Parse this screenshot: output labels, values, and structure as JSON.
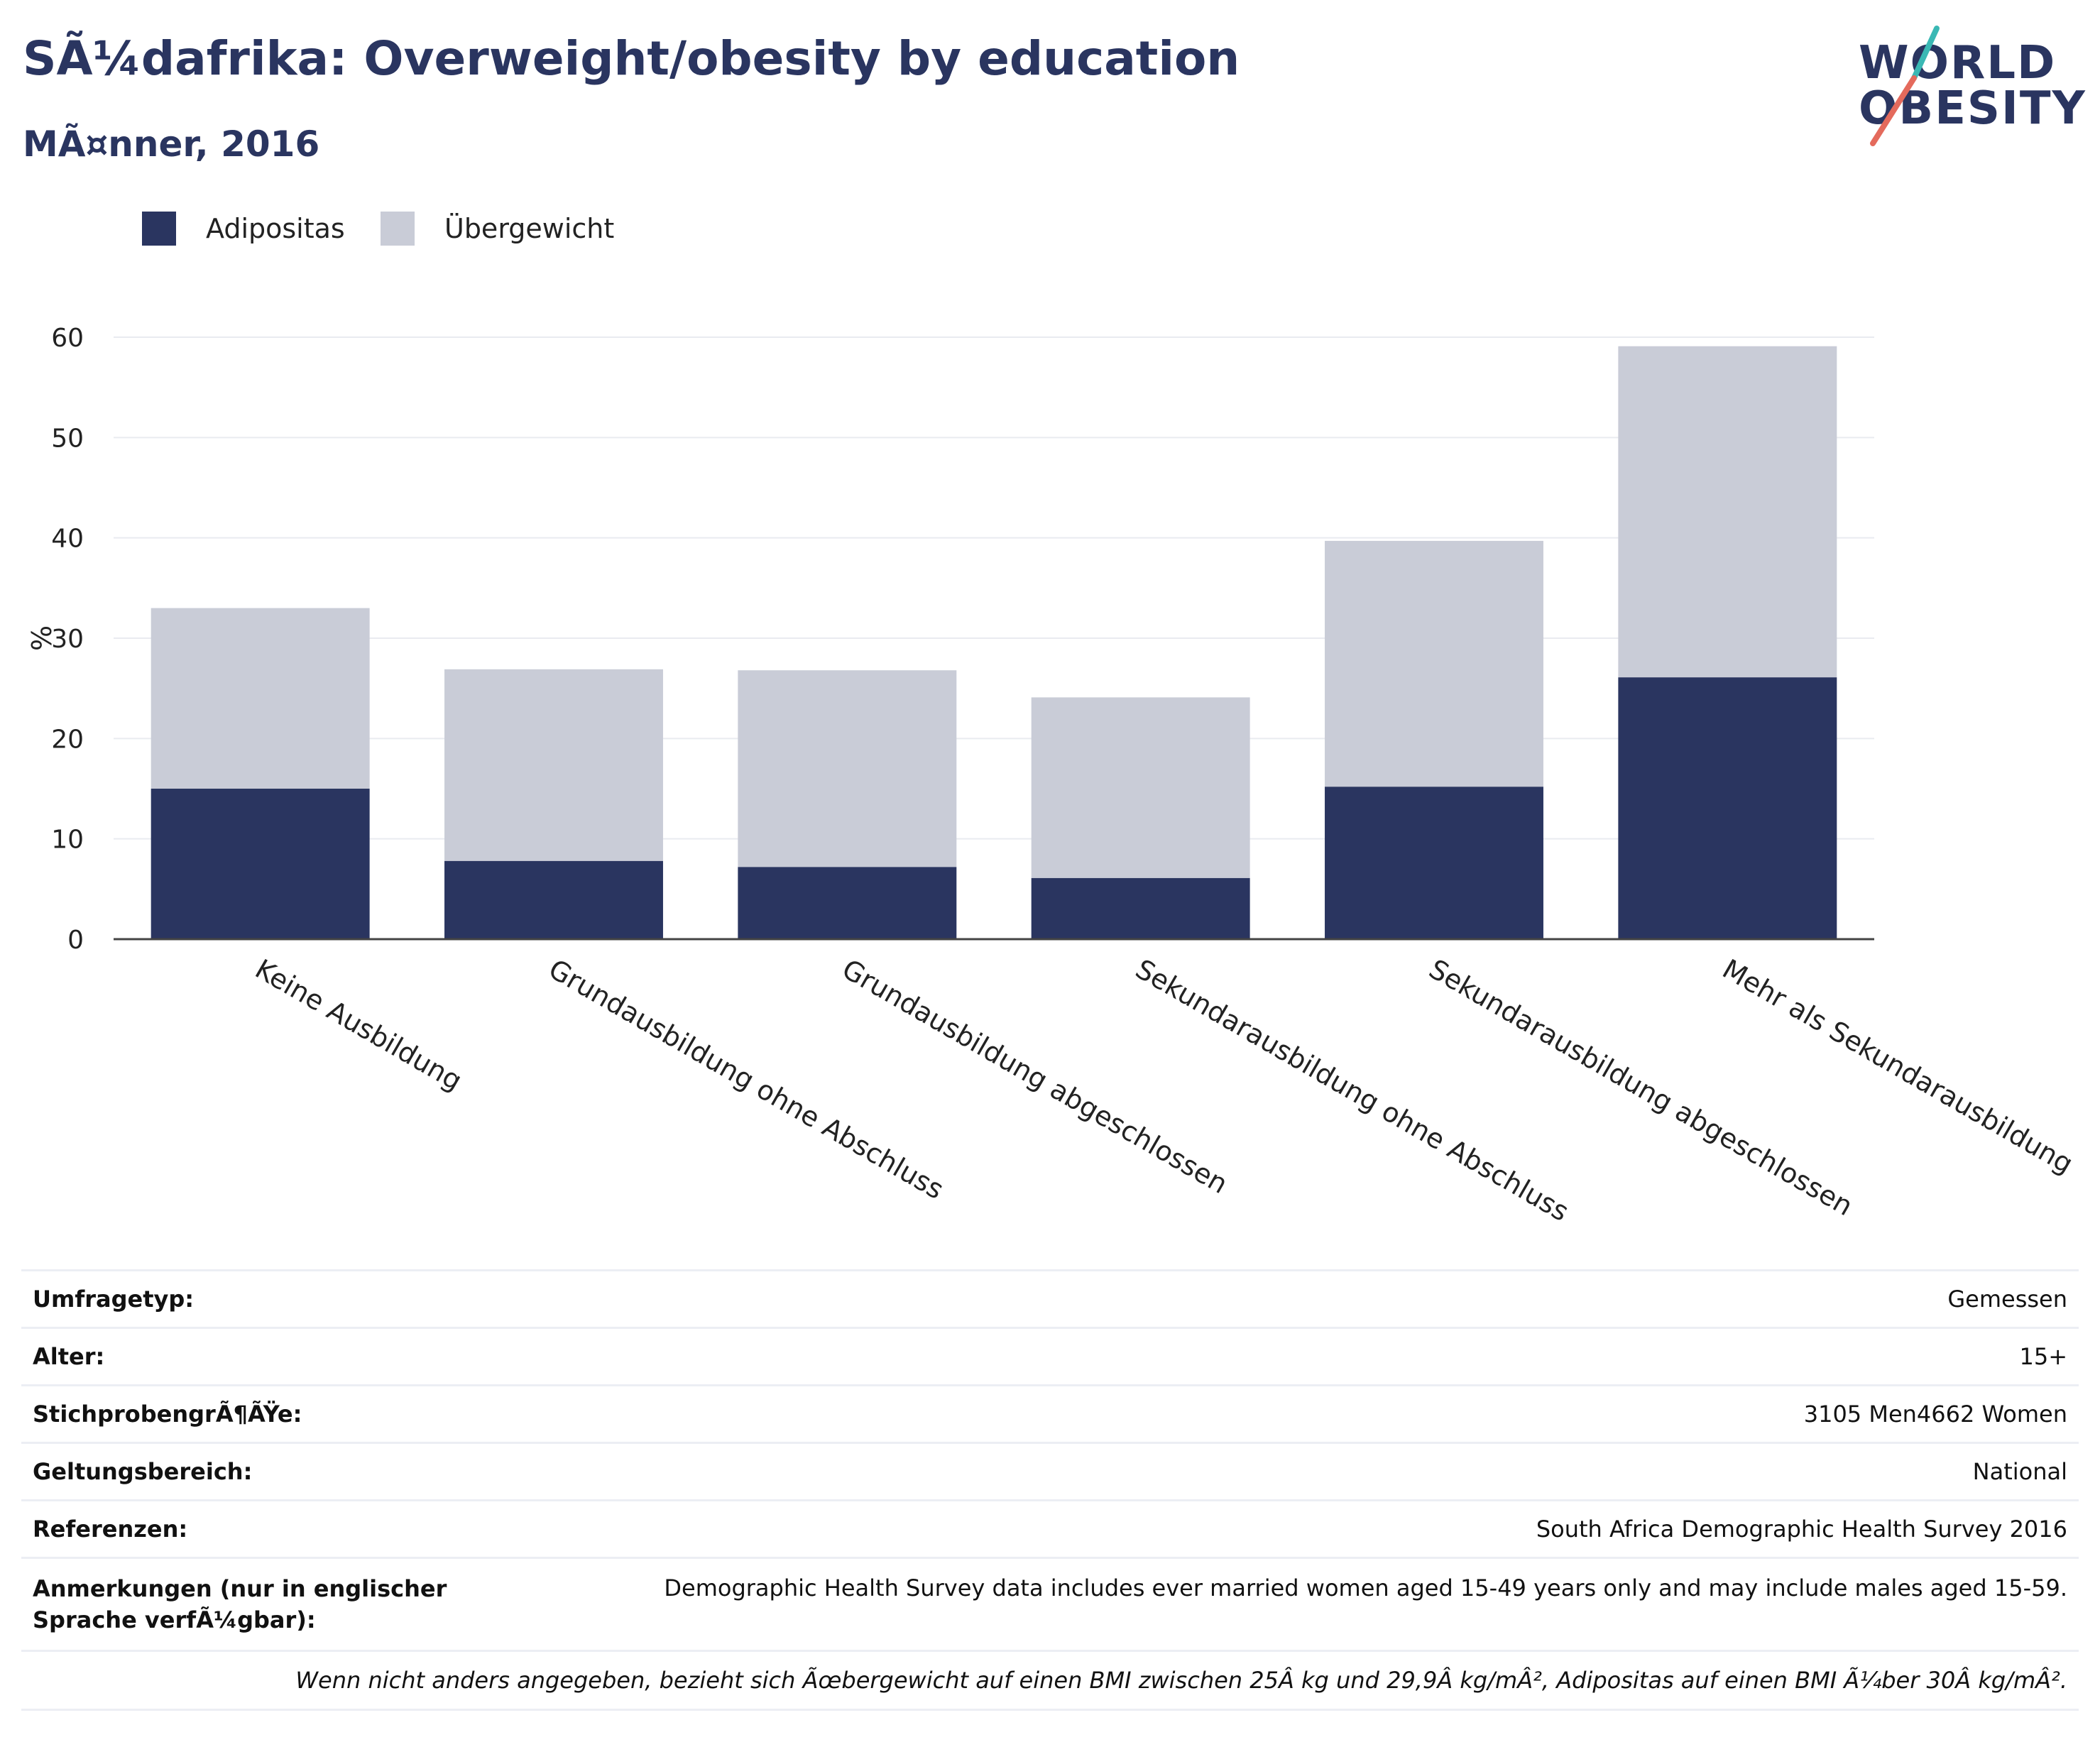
{
  "header": {
    "title": "SÃ¼dafrika: Overweight/obesity by education",
    "subtitle": "MÃ¤nner, 2016"
  },
  "logo": {
    "line1": "WORLD",
    "line2": "OBESITY",
    "accent_colors": [
      "#3ab8b4",
      "#e46a5c"
    ]
  },
  "colors": {
    "adipositas": "#2a3560",
    "uebergewicht": "#c9ccd7",
    "text": "#2a3560"
  },
  "chart_data": {
    "type": "bar",
    "stacked": true,
    "categories": [
      "Keine Ausbildung",
      "Grundausbildung ohne Abschluss",
      "Grundausbildung abgeschlossen",
      "Sekundarausbildung ohne Abschluss",
      "Sekundarausbildung abgeschlossen",
      "Mehr als Sekundarausbildung"
    ],
    "series": [
      {
        "name": "Adipositas",
        "values": [
          15.0,
          7.8,
          7.2,
          6.1,
          15.2,
          26.1
        ]
      },
      {
        "name": "Übergewicht",
        "values": [
          18.0,
          19.1,
          19.6,
          18.0,
          24.5,
          33.0
        ]
      }
    ],
    "ylabel": "%",
    "xlabel": "",
    "ylim": [
      0,
      60
    ],
    "yticks": [
      0,
      10,
      20,
      30,
      40,
      50,
      60
    ],
    "grid": true,
    "legend_position": "top-left"
  },
  "info": {
    "rows": [
      {
        "label": "Umfragetyp:",
        "value": "Gemessen"
      },
      {
        "label": "Alter:",
        "value": "15+"
      },
      {
        "label": "StichprobengrÃ¶ÃŸe:",
        "value": "3105 Men4662 Women"
      },
      {
        "label": "Geltungsbereich:",
        "value": "National"
      },
      {
        "label": "Referenzen:",
        "value": "South Africa Demographic Health Survey 2016"
      },
      {
        "label": "Anmerkungen (nur in englischer Sprache verfÃ¼gbar):",
        "value": "Demographic Health Survey data includes ever married women aged 15-49 years only and may include males aged 15-59."
      }
    ],
    "footnote": "Wenn nicht anders angegeben, bezieht sich Ãœbergewicht auf einen BMI zwischen 25Â kg und 29,9Â kg/mÂ², Adipositas auf einen BMI Ã¼ber 30Â kg/mÂ²."
  }
}
